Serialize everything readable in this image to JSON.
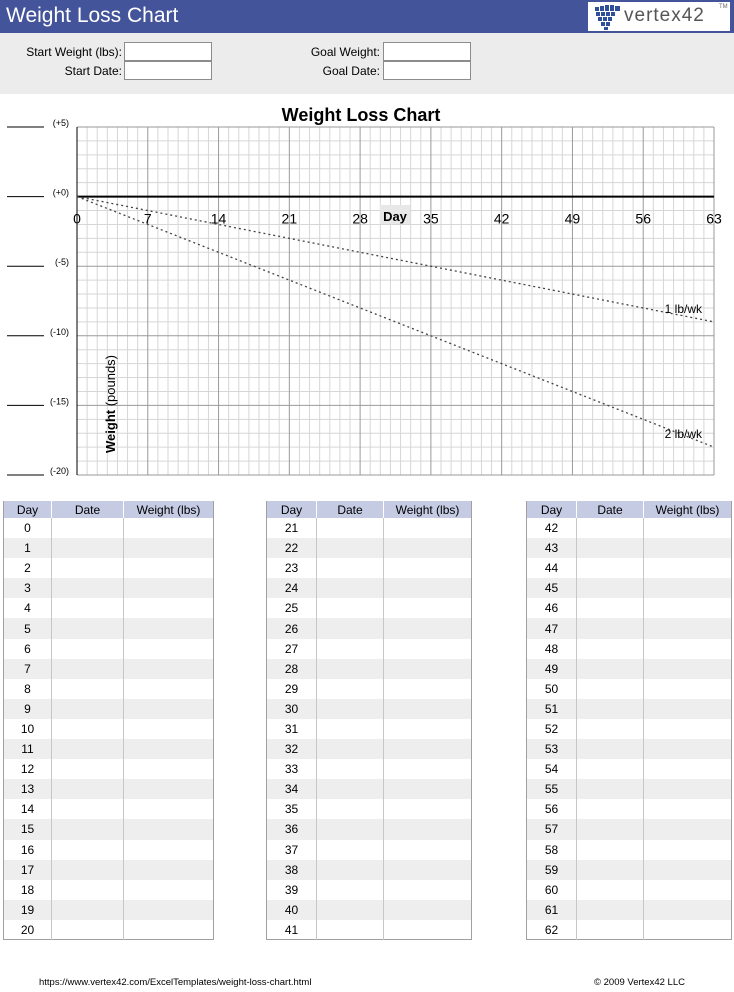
{
  "header": {
    "title": "Weight Loss Chart",
    "logo_text": "vertex42",
    "logo_tm": "TM",
    "logo_icon": "vertex42-grid-logo-icon",
    "color": "#44549a"
  },
  "info": {
    "start_weight_label": "Start Weight (lbs):",
    "start_weight_value": "",
    "start_date_label": "Start Date:",
    "start_date_value": "",
    "goal_weight_label": "Goal Weight:",
    "goal_weight_value": "",
    "goal_date_label": "Goal Date:",
    "goal_date_value": ""
  },
  "chart_data": {
    "type": "line",
    "title": "Weight Loss Chart",
    "xlabel": "Day",
    "ylabel_bold": "Weight",
    "ylabel_rest": " (pounds)",
    "xlim": [
      0,
      63
    ],
    "ylim": [
      -20,
      5
    ],
    "x_ticks": [
      0,
      7,
      14,
      21,
      28,
      35,
      42,
      49,
      56,
      63
    ],
    "y_ticks": [
      {
        "value": 5,
        "label": "(+5)"
      },
      {
        "value": 0,
        "label": "(+0)"
      },
      {
        "value": -5,
        "label": "(-5)"
      },
      {
        "value": -10,
        "label": "(-10)"
      },
      {
        "value": -15,
        "label": "(-15)"
      },
      {
        "value": -20,
        "label": "(-20)"
      }
    ],
    "grid": true,
    "series": [
      {
        "name": "1 lb/wk",
        "x": [
          0,
          63
        ],
        "y": [
          0,
          -9
        ]
      },
      {
        "name": "2 lb/wk",
        "x": [
          0,
          63
        ],
        "y": [
          0,
          -18
        ]
      }
    ]
  },
  "log": {
    "headers": [
      "Day",
      "Date",
      "Weight (lbs)"
    ],
    "columns": [
      {
        "days": [
          "0",
          "1",
          "2",
          "3",
          "4",
          "5",
          "6",
          "7",
          "8",
          "9",
          "10",
          "11",
          "12",
          "13",
          "14",
          "15",
          "16",
          "17",
          "18",
          "19",
          "20"
        ]
      },
      {
        "days": [
          "21",
          "22",
          "23",
          "24",
          "25",
          "26",
          "27",
          "28",
          "29",
          "30",
          "31",
          "32",
          "33",
          "34",
          "35",
          "36",
          "37",
          "38",
          "39",
          "40",
          "41"
        ]
      },
      {
        "days": [
          "42",
          "43",
          "44",
          "45",
          "46",
          "47",
          "48",
          "49",
          "50",
          "51",
          "52",
          "53",
          "54",
          "55",
          "56",
          "57",
          "58",
          "59",
          "60",
          "61",
          "62"
        ]
      }
    ]
  },
  "footer": {
    "url": "https://www.vertex42.com/ExcelTemplates/weight-loss-chart.html",
    "copyright": "© 2009 Vertex42 LLC"
  }
}
